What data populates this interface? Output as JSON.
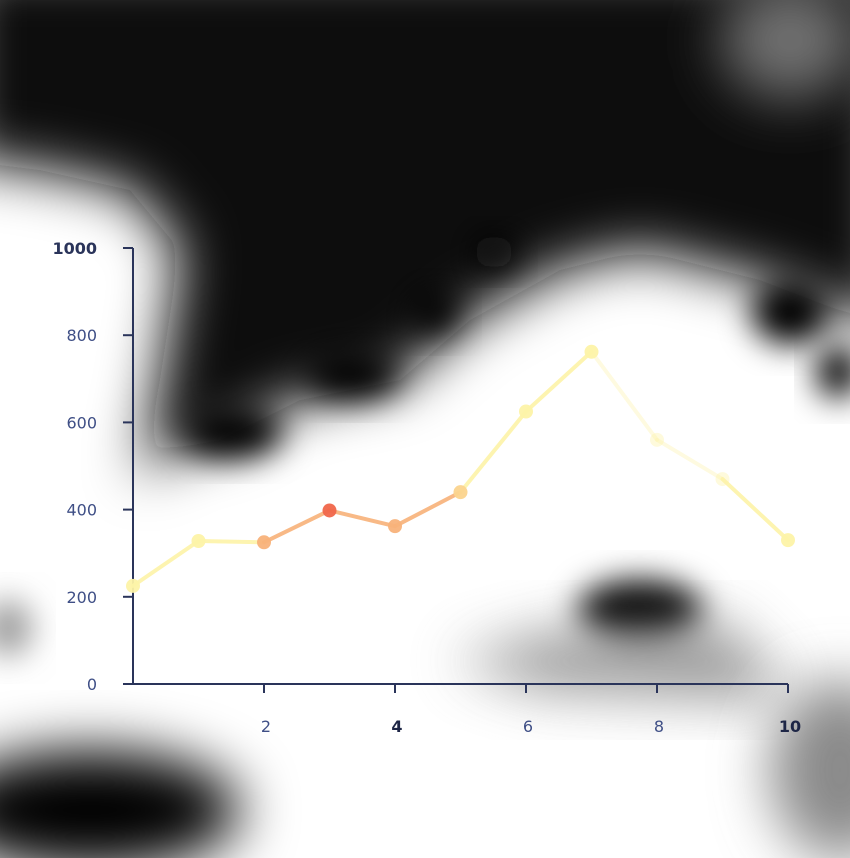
{
  "chart_data": {
    "type": "line",
    "title": "",
    "xlabel": "",
    "ylabel": "",
    "xlim": [
      0,
      10
    ],
    "ylim": [
      0,
      1000
    ],
    "x_ticks": [
      2,
      4,
      6,
      8,
      10
    ],
    "y_ticks": [
      0,
      200,
      400,
      600,
      800,
      1000
    ],
    "grid": false,
    "legend": "none",
    "series": [
      {
        "x": [
          0,
          1,
          2,
          3,
          4,
          5,
          6,
          7,
          8,
          9,
          10
        ],
        "values": [
          225,
          328,
          325,
          398,
          362,
          440,
          625,
          762,
          560,
          470,
          330
        ]
      }
    ],
    "colors": {
      "axis": "#2a345a",
      "tick_label": "#3f4f86",
      "line_light": "#fdf3a8",
      "line_mid": "#f8b27a",
      "line_hot": "#f0664a"
    },
    "background_overlay": "saliency-heatmap (black/white blur)"
  }
}
